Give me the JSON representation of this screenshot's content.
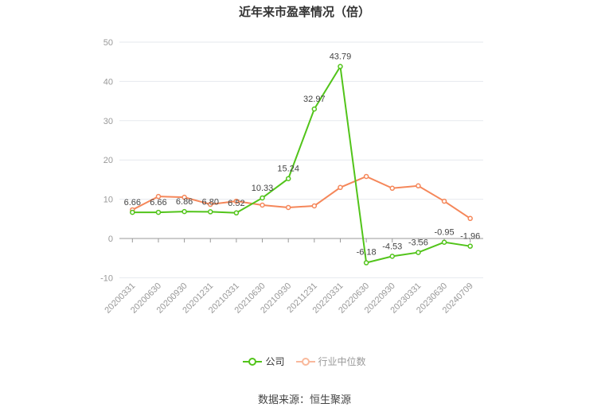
{
  "chart_data": {
    "type": "line",
    "title": "近年来市盈率情况（倍）",
    "xlabel": "",
    "ylabel": "",
    "ylim": [
      -10,
      50
    ],
    "yticks": [
      -10,
      0,
      10,
      20,
      30,
      40,
      50
    ],
    "grid": true,
    "legend_position": "bottom",
    "categories": [
      "20200331",
      "20200630",
      "20200930",
      "20201231",
      "20210331",
      "20210630",
      "20210930",
      "20211231",
      "20220331",
      "20220630",
      "20220930",
      "20230331",
      "20230630",
      "20240709"
    ],
    "series": [
      {
        "name": "公司",
        "color": "#52c41a",
        "values": [
          6.66,
          6.66,
          6.86,
          6.8,
          6.52,
          10.33,
          15.24,
          32.97,
          43.79,
          -6.18,
          -4.53,
          -3.56,
          -0.95,
          -1.96
        ],
        "labels": [
          "6.66",
          "6.66",
          "6.86",
          "6.80",
          "6.52",
          "10.33",
          "15.24",
          "32.97",
          "43.79",
          "-6.18",
          "-4.53",
          "-3.56",
          "-0.95",
          "-1.96"
        ]
      },
      {
        "name": "行业中位数",
        "color": "#f5875a",
        "values": [
          7.3,
          10.7,
          10.5,
          8.7,
          9.5,
          8.5,
          7.9,
          8.3,
          13.0,
          15.8,
          12.8,
          13.4,
          9.5,
          5.1
        ]
      }
    ]
  },
  "legend": {
    "company": "公司",
    "industry": "行业中位数"
  },
  "source": "数据来源：恒生聚源"
}
